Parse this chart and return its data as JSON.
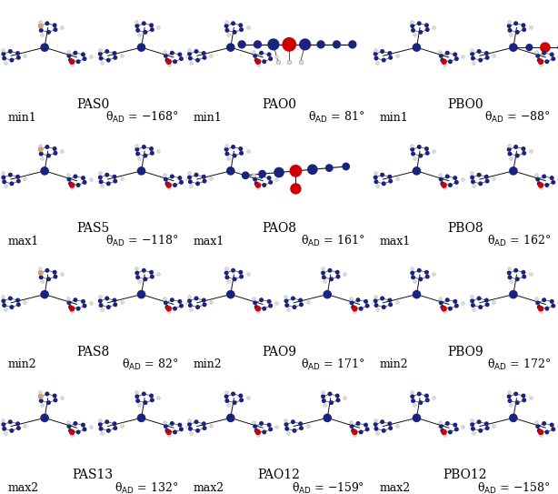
{
  "background_color": "#ffffff",
  "figsize": [
    6.14,
    5.43
  ],
  "dpi": 100,
  "text_color": "#000000",
  "mol_label_fontsize": 10,
  "annot_fontsize": 9,
  "mol_groups": [
    [
      "PAS0",
      "PAO0",
      "PBO0"
    ],
    [
      "PAS5",
      "PAO8",
      "PBO8"
    ],
    [
      "PAS8",
      "PAO9",
      "PBO9"
    ],
    [
      "PAS13",
      "PAO12",
      "PBO12"
    ]
  ],
  "annot_data": [
    [
      [
        "min1",
        "θ$_\\mathrm{AD}$ = −168°"
      ],
      [
        "min1",
        "θ$_\\mathrm{AD}$ = 81°"
      ],
      [
        "min1",
        "θ$_\\mathrm{AD}$ = −88°"
      ]
    ],
    [
      [
        "max1",
        "θ$_\\mathrm{AD}$ = −118°"
      ],
      [
        "max1",
        "θ$_\\mathrm{AD}$ = 161°"
      ],
      [
        "max1",
        "θ$_\\mathrm{AD}$ = 162°"
      ]
    ],
    [
      [
        "min2",
        "θ$_\\mathrm{AD}$ = 82°"
      ],
      [
        "min2",
        "θ$_\\mathrm{AD}$ = 171°"
      ],
      [
        "min2",
        "θ$_\\mathrm{AD}$ = 172°"
      ]
    ],
    [
      [
        "max2",
        "θ$_\\mathrm{AD}$ = 132°"
      ],
      [
        "max2",
        "θ$_\\mathrm{AD}$ = −159°"
      ],
      [
        "max2",
        "θ$_\\mathrm{AD}$ = −158°"
      ]
    ]
  ],
  "navy": "#1a237e",
  "red": "#cc0000",
  "gray": "#aaaaaa",
  "white_atom": "#dddddd",
  "tan": "#c8a870"
}
